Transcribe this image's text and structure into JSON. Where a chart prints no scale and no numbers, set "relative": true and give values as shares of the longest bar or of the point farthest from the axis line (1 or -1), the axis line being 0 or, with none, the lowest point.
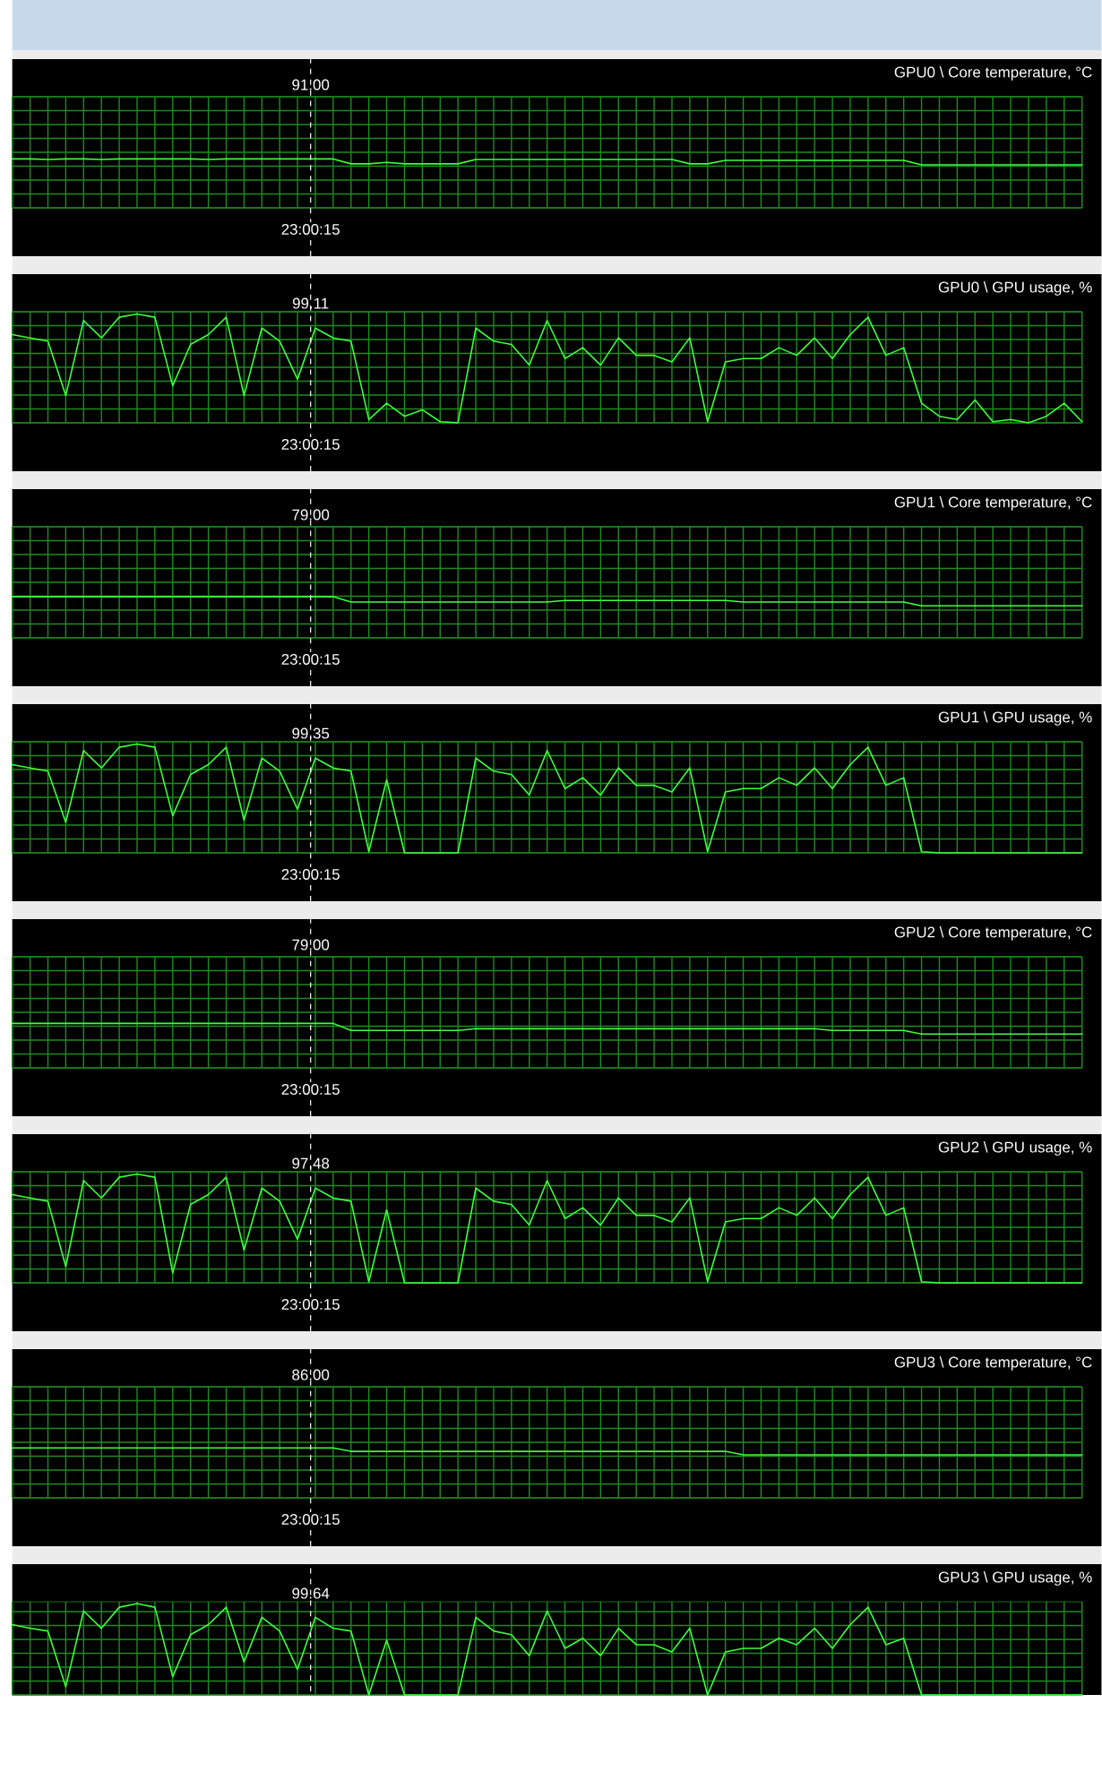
{
  "chart_data": [
    {
      "type": "line",
      "title": "GPU0 \\ Core temperature, °C",
      "relative": true,
      "grid": true,
      "tick_labels": false,
      "color": "#3cff3c",
      "categories": [
        null,
        null,
        null,
        null,
        null,
        null,
        null,
        null,
        null,
        null,
        null,
        null,
        null,
        null,
        null,
        null,
        null,
        null,
        null,
        null,
        null,
        null,
        null,
        null,
        null,
        null,
        null,
        null,
        null,
        null,
        null,
        null,
        null,
        null,
        null,
        null,
        null,
        null,
        null,
        null,
        null,
        null,
        null,
        null,
        null,
        null,
        null,
        null,
        null,
        null,
        null,
        null,
        null,
        null,
        null,
        null,
        null,
        null,
        null,
        null,
        null
      ],
      "values": [
        1,
        1,
        0.99,
        1,
        1,
        0.99,
        1,
        1,
        1,
        1,
        1,
        0.99,
        1,
        1,
        1,
        1,
        1,
        1,
        1,
        0.9,
        0.9,
        0.93,
        0.9,
        0.9,
        0.9,
        0.9,
        0.99,
        0.99,
        0.99,
        0.99,
        0.99,
        0.99,
        0.99,
        0.99,
        0.99,
        0.99,
        0.99,
        0.99,
        0.9,
        0.9,
        0.97,
        0.97,
        0.97,
        0.97,
        0.97,
        0.97,
        0.97,
        0.97,
        0.97,
        0.97,
        0.97,
        0.88,
        0.88,
        0.88,
        0.88,
        0.88,
        0.88,
        0.88,
        0.88,
        0.88,
        0.88
      ],
      "annotations": [
        "91.00",
        "23:00:15"
      ]
    },
    {
      "type": "line",
      "title": "GPU0 \\ GPU usage, %",
      "relative": true,
      "grid": true,
      "tick_labels": false,
      "color": "#3cff3c",
      "categories": [
        null,
        null,
        null,
        null,
        null,
        null,
        null,
        null,
        null,
        null,
        null,
        null,
        null,
        null,
        null,
        null,
        null,
        null,
        null,
        null,
        null,
        null,
        null,
        null,
        null,
        null,
        null,
        null,
        null,
        null,
        null,
        null,
        null,
        null,
        null,
        null,
        null,
        null,
        null,
        null,
        null,
        null,
        null,
        null,
        null,
        null,
        null,
        null,
        null,
        null,
        null,
        null,
        null,
        null,
        null,
        null,
        null,
        null,
        null,
        null,
        null
      ],
      "values": [
        0.81,
        0.78,
        0.75,
        0.25,
        0.94,
        0.78,
        0.97,
        1,
        0.97,
        0.34,
        0.72,
        0.81,
        0.97,
        0.25,
        0.87,
        0.75,
        0.4,
        0.87,
        0.78,
        0.75,
        0.03,
        0.18,
        0.06,
        0.12,
        0.01,
        0,
        0.87,
        0.75,
        0.72,
        0.53,
        0.94,
        0.59,
        0.69,
        0.53,
        0.78,
        0.62,
        0.62,
        0.56,
        0.78,
        0.01,
        0.56,
        0.59,
        0.59,
        0.69,
        0.62,
        0.78,
        0.59,
        0.81,
        0.97,
        0.62,
        0.69,
        0.18,
        0.06,
        0.03,
        0.21,
        0.01,
        0.03,
        0,
        0.06,
        0.18,
        0.01
      ],
      "annotations": [
        "99.11",
        "23:00:15"
      ]
    },
    {
      "type": "line",
      "title": "GPU1 \\ Core temperature, °C",
      "relative": true,
      "grid": true,
      "tick_labels": false,
      "color": "#3cff3c",
      "categories": [
        null,
        null,
        null,
        null,
        null,
        null,
        null,
        null,
        null,
        null,
        null,
        null,
        null,
        null,
        null,
        null,
        null,
        null,
        null,
        null,
        null,
        null,
        null,
        null,
        null,
        null,
        null,
        null,
        null,
        null,
        null,
        null,
        null,
        null,
        null,
        null,
        null,
        null,
        null,
        null,
        null,
        null,
        null,
        null,
        null,
        null,
        null,
        null,
        null,
        null,
        null,
        null,
        null,
        null,
        null,
        null,
        null,
        null,
        null,
        null,
        null
      ],
      "values": [
        1,
        1,
        1,
        1,
        1,
        1,
        1,
        1,
        1,
        1,
        1,
        1,
        1,
        1,
        1,
        1,
        1,
        1,
        1,
        0.87,
        0.87,
        0.87,
        0.87,
        0.87,
        0.87,
        0.87,
        0.87,
        0.87,
        0.87,
        0.87,
        0.87,
        0.91,
        0.91,
        0.91,
        0.91,
        0.91,
        0.91,
        0.91,
        0.91,
        0.91,
        0.91,
        0.87,
        0.87,
        0.87,
        0.87,
        0.87,
        0.87,
        0.87,
        0.87,
        0.87,
        0.87,
        0.78,
        0.78,
        0.78,
        0.78,
        0.78,
        0.78,
        0.78,
        0.78,
        0.78,
        0.78
      ],
      "annotations": [
        "79.00",
        "23:00:15"
      ]
    },
    {
      "type": "line",
      "title": "GPU1 \\ GPU usage, %",
      "relative": true,
      "grid": true,
      "tick_labels": false,
      "color": "#3cff3c",
      "categories": [
        null,
        null,
        null,
        null,
        null,
        null,
        null,
        null,
        null,
        null,
        null,
        null,
        null,
        null,
        null,
        null,
        null,
        null,
        null,
        null,
        null,
        null,
        null,
        null,
        null,
        null,
        null,
        null,
        null,
        null,
        null,
        null,
        null,
        null,
        null,
        null,
        null,
        null,
        null,
        null,
        null,
        null,
        null,
        null,
        null,
        null,
        null,
        null,
        null,
        null,
        null,
        null,
        null,
        null,
        null,
        null,
        null,
        null,
        null,
        null,
        null
      ],
      "values": [
        0.81,
        0.78,
        0.75,
        0.28,
        0.94,
        0.78,
        0.97,
        1,
        0.97,
        0.34,
        0.72,
        0.81,
        0.97,
        0.3,
        0.87,
        0.75,
        0.4,
        0.87,
        0.78,
        0.75,
        0.01,
        0.67,
        0,
        0,
        0,
        0,
        0.87,
        0.75,
        0.72,
        0.53,
        0.94,
        0.59,
        0.69,
        0.53,
        0.78,
        0.62,
        0.62,
        0.56,
        0.78,
        0.01,
        0.56,
        0.59,
        0.59,
        0.69,
        0.62,
        0.78,
        0.59,
        0.81,
        0.97,
        0.62,
        0.69,
        0.01,
        0,
        0,
        0,
        0,
        0,
        0,
        0,
        0,
        0
      ],
      "annotations": [
        "99.35",
        "23:00:15"
      ]
    },
    {
      "type": "line",
      "title": "GPU2 \\ Core temperature, °C",
      "relative": true,
      "grid": true,
      "tick_labels": false,
      "color": "#3cff3c",
      "categories": [
        null,
        null,
        null,
        null,
        null,
        null,
        null,
        null,
        null,
        null,
        null,
        null,
        null,
        null,
        null,
        null,
        null,
        null,
        null,
        null,
        null,
        null,
        null,
        null,
        null,
        null,
        null,
        null,
        null,
        null,
        null,
        null,
        null,
        null,
        null,
        null,
        null,
        null,
        null,
        null,
        null,
        null,
        null,
        null,
        null,
        null,
        null,
        null,
        null,
        null,
        null,
        null,
        null,
        null,
        null,
        null,
        null,
        null,
        null,
        null,
        null
      ],
      "values": [
        1,
        1,
        1,
        1,
        1,
        1,
        1,
        1,
        1,
        1,
        1,
        1,
        1,
        1,
        1,
        1,
        1,
        1,
        1,
        0.84,
        0.84,
        0.84,
        0.84,
        0.84,
        0.84,
        0.84,
        0.88,
        0.88,
        0.88,
        0.88,
        0.88,
        0.88,
        0.88,
        0.88,
        0.88,
        0.88,
        0.88,
        0.88,
        0.88,
        0.88,
        0.88,
        0.88,
        0.88,
        0.88,
        0.88,
        0.88,
        0.84,
        0.84,
        0.84,
        0.84,
        0.84,
        0.76,
        0.76,
        0.76,
        0.76,
        0.76,
        0.76,
        0.76,
        0.76,
        0.76,
        0.76
      ],
      "annotations": [
        "79.00",
        "23:00:15"
      ]
    },
    {
      "type": "line",
      "title": "GPU2 \\ GPU usage, %",
      "relative": true,
      "grid": true,
      "tick_labels": false,
      "color": "#3cff3c",
      "categories": [
        null,
        null,
        null,
        null,
        null,
        null,
        null,
        null,
        null,
        null,
        null,
        null,
        null,
        null,
        null,
        null,
        null,
        null,
        null,
        null,
        null,
        null,
        null,
        null,
        null,
        null,
        null,
        null,
        null,
        null,
        null,
        null,
        null,
        null,
        null,
        null,
        null,
        null,
        null,
        null,
        null,
        null,
        null,
        null,
        null,
        null,
        null,
        null,
        null,
        null,
        null,
        null,
        null,
        null,
        null,
        null,
        null,
        null,
        null,
        null,
        null
      ],
      "values": [
        0.81,
        0.78,
        0.75,
        0.15,
        0.94,
        0.78,
        0.97,
        1,
        0.97,
        0.09,
        0.72,
        0.81,
        0.97,
        0.3,
        0.87,
        0.75,
        0.4,
        0.87,
        0.78,
        0.75,
        0.01,
        0.67,
        0,
        0,
        0,
        0,
        0.87,
        0.75,
        0.72,
        0.53,
        0.94,
        0.59,
        0.69,
        0.53,
        0.78,
        0.62,
        0.62,
        0.56,
        0.78,
        0.01,
        0.56,
        0.59,
        0.59,
        0.69,
        0.62,
        0.78,
        0.59,
        0.81,
        0.97,
        0.62,
        0.69,
        0.01,
        0,
        0,
        0,
        0,
        0,
        0,
        0,
        0,
        0
      ],
      "annotations": [
        "97.48",
        "23:00:15"
      ]
    },
    {
      "type": "line",
      "title": "GPU3 \\ Core temperature, °C",
      "relative": true,
      "grid": true,
      "tick_labels": false,
      "color": "#3cff3c",
      "categories": [
        null,
        null,
        null,
        null,
        null,
        null,
        null,
        null,
        null,
        null,
        null,
        null,
        null,
        null,
        null,
        null,
        null,
        null,
        null,
        null,
        null,
        null,
        null,
        null,
        null,
        null,
        null,
        null,
        null,
        null,
        null,
        null,
        null,
        null,
        null,
        null,
        null,
        null,
        null,
        null,
        null,
        null,
        null,
        null,
        null,
        null,
        null,
        null,
        null,
        null,
        null,
        null,
        null,
        null,
        null,
        null,
        null,
        null,
        null,
        null,
        null
      ],
      "values": [
        1,
        1,
        1,
        1,
        1,
        1,
        1,
        1,
        1,
        1,
        1,
        1,
        1,
        1,
        1,
        1,
        1,
        1,
        1,
        0.93,
        0.93,
        0.93,
        0.93,
        0.93,
        0.93,
        0.93,
        0.93,
        0.93,
        0.93,
        0.93,
        0.93,
        0.93,
        0.93,
        0.93,
        0.93,
        0.93,
        0.93,
        0.93,
        0.93,
        0.93,
        0.93,
        0.86,
        0.86,
        0.86,
        0.86,
        0.86,
        0.86,
        0.86,
        0.86,
        0.86,
        0.86,
        0.86,
        0.86,
        0.86,
        0.86,
        0.86,
        0.86,
        0.86,
        0.86,
        0.86,
        0.86
      ],
      "annotations": [
        "86.00",
        "23:00:15"
      ]
    },
    {
      "type": "line",
      "title": "GPU3 \\ GPU usage, %",
      "relative": true,
      "grid": true,
      "tick_labels": false,
      "color": "#3cff3c",
      "categories": [
        null,
        null,
        null,
        null,
        null,
        null,
        null,
        null,
        null,
        null,
        null,
        null,
        null,
        null,
        null,
        null,
        null,
        null,
        null,
        null,
        null,
        null,
        null,
        null,
        null,
        null,
        null,
        null,
        null,
        null,
        null,
        null,
        null,
        null,
        null,
        null,
        null,
        null,
        null,
        null,
        null,
        null,
        null,
        null,
        null,
        null,
        null,
        null,
        null,
        null,
        null,
        null,
        null,
        null,
        null,
        null,
        null,
        null,
        null,
        null,
        null
      ],
      "values": [
        0.77,
        0.73,
        0.7,
        0.09,
        0.92,
        0.73,
        0.96,
        1,
        0.96,
        0.2,
        0.66,
        0.77,
        0.96,
        0.36,
        0.85,
        0.7,
        0.28,
        0.85,
        0.73,
        0.7,
        0,
        0.6,
        0,
        0,
        0,
        0,
        0.85,
        0.7,
        0.66,
        0.43,
        0.92,
        0.51,
        0.62,
        0.43,
        0.73,
        0.55,
        0.55,
        0.47,
        0.73,
        0,
        0.47,
        0.51,
        0.51,
        0.62,
        0.55,
        0.73,
        0.51,
        0.77,
        0.96,
        0.55,
        0.62,
        0,
        0,
        0,
        0,
        0,
        0,
        0,
        0,
        0,
        0
      ],
      "annotations": [
        "99.64"
      ]
    }
  ]
}
